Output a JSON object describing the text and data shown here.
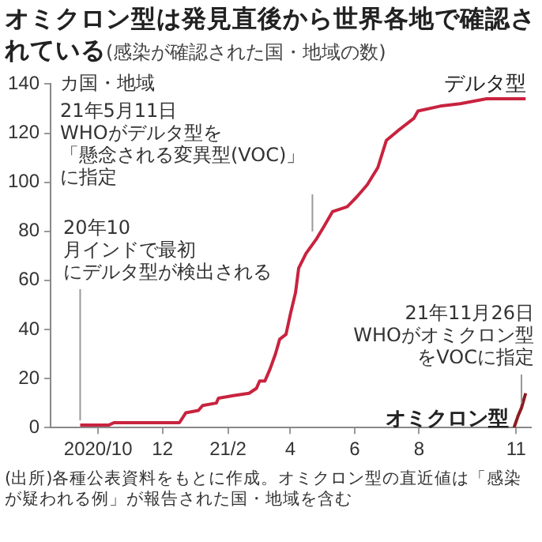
{
  "chart_data": {
    "type": "line",
    "title": "オミクロン型は発見直後から世界各地で確認されている",
    "subtitle": "(感染が確認された国・地域の数)",
    "ylabel": "カ国・地域",
    "xlim": [
      "2020-08-17",
      "2021-11-15"
    ],
    "xticks": [
      {
        "value": "2020-10",
        "label": "2020/10"
      },
      {
        "value": "2020-12",
        "label": "12"
      },
      {
        "value": "2021-02",
        "label": "21/2"
      },
      {
        "value": "2021-04",
        "label": "4"
      },
      {
        "value": "2021-06",
        "label": "6"
      },
      {
        "value": "2021-08",
        "label": "8"
      },
      {
        "value": "2021-11",
        "label": "11"
      }
    ],
    "ylim": [
      0,
      140
    ],
    "yticks": [
      0,
      20,
      40,
      60,
      80,
      100,
      120,
      140
    ],
    "grid": false,
    "legend": false,
    "marker": "none",
    "line_style": "solid",
    "series": [
      {
        "name": "デルタ型",
        "color": "#c8233f",
        "x": [
          "2020-09-14",
          "2020-10-11",
          "2020-10-16",
          "2020-12-17",
          "2020-12-23",
          "2021-01-04",
          "2021-01-08",
          "2021-01-21",
          "2021-01-23",
          "2021-02-06",
          "2021-02-21",
          "2021-02-28",
          "2021-03-03",
          "2021-03-08",
          "2021-03-13",
          "2021-03-18",
          "2021-03-22",
          "2021-03-28",
          "2021-04-01",
          "2021-04-06",
          "2021-04-09",
          "2021-04-16",
          "2021-04-26",
          "2021-05-03",
          "2021-05-11",
          "2021-05-25",
          "2021-06-03",
          "2021-06-13",
          "2021-06-23",
          "2021-07-01",
          "2021-07-12",
          "2021-07-27",
          "2021-07-31",
          "2021-08-21",
          "2021-09-09",
          "2021-10-04",
          "2021-11-10"
        ],
        "values": [
          1,
          1,
          2,
          2,
          6,
          7,
          9,
          10,
          12,
          13,
          14,
          16,
          19,
          19,
          24,
          30,
          36,
          38,
          46,
          55,
          65,
          71,
          77,
          82,
          88,
          90,
          94,
          99,
          106,
          117,
          121,
          126,
          129,
          131,
          132,
          134,
          134
        ]
      },
      {
        "name": "オミクロン型",
        "color": "#8e1b22",
        "x": [
          "2021-10-30",
          "2021-11-03",
          "2021-11-06",
          "2021-11-10"
        ],
        "values": [
          0,
          5,
          8,
          14
        ]
      }
    ],
    "annotations": [
      {
        "text": "20年10月インドで最初にデルタ型が検出される",
        "x": "2020-09-14",
        "y": 1
      },
      {
        "text": "21年5月11日WHOがデルタ型を「懸念される変異型(VOC)」に指定",
        "x": "2021-04-22",
        "y": 78
      },
      {
        "text": "21年11月26日WHOがオミクロン型をVOCに指定",
        "x": "2021-11-06",
        "y": 8
      },
      "(出所)各種公表資料をもとに作成。オミクロン型の直近値は「感染が疑われる例」が報告された国・地域を含む"
    ]
  }
}
